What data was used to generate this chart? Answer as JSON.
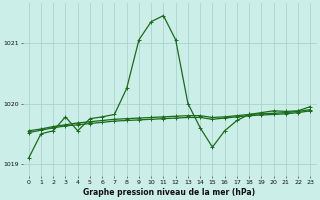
{
  "title": "Graphe pression niveau de la mer (hPa)",
  "background_color": "#cceee8",
  "grid_color": "#aad4cc",
  "line_color": "#1a6b1a",
  "xlim": [
    -0.5,
    23.5
  ],
  "ylim": [
    1018.8,
    1021.65
  ],
  "yticks": [
    1019,
    1020,
    1021
  ],
  "xticks": [
    0,
    1,
    2,
    3,
    4,
    5,
    6,
    7,
    8,
    9,
    10,
    11,
    12,
    13,
    14,
    15,
    16,
    17,
    18,
    19,
    20,
    21,
    22,
    23
  ],
  "series_main": {
    "x": [
      0,
      1,
      2,
      3,
      4,
      5,
      6,
      7,
      8,
      9,
      10,
      11,
      12,
      13,
      14,
      15,
      16,
      17,
      18,
      19,
      20,
      21,
      22,
      23
    ],
    "y": [
      1019.1,
      1019.5,
      1019.55,
      1019.78,
      1019.55,
      1019.75,
      1019.78,
      1019.82,
      1020.25,
      1021.05,
      1021.35,
      1021.45,
      1021.05,
      1020.0,
      1019.6,
      1019.28,
      1019.55,
      1019.72,
      1019.82,
      1019.85,
      1019.88,
      1019.87,
      1019.88,
      1019.95
    ]
  },
  "series_flat1": {
    "x": [
      0,
      1,
      2,
      3,
      4,
      5,
      6,
      7,
      8,
      9,
      10,
      11,
      12,
      13,
      14,
      15,
      16,
      17,
      18,
      19,
      20,
      21,
      22,
      23
    ],
    "y": [
      1019.55,
      1019.58,
      1019.62,
      1019.65,
      1019.68,
      1019.7,
      1019.72,
      1019.74,
      1019.75,
      1019.76,
      1019.77,
      1019.78,
      1019.79,
      1019.8,
      1019.8,
      1019.77,
      1019.78,
      1019.8,
      1019.82,
      1019.83,
      1019.84,
      1019.85,
      1019.87,
      1019.9
    ]
  },
  "series_flat2": {
    "x": [
      0,
      1,
      2,
      3,
      4,
      5,
      6,
      7,
      8,
      9,
      10,
      11,
      12,
      13,
      14,
      15,
      16,
      17,
      18,
      19,
      20,
      21,
      22,
      23
    ],
    "y": [
      1019.52,
      1019.56,
      1019.6,
      1019.63,
      1019.65,
      1019.67,
      1019.69,
      1019.71,
      1019.72,
      1019.73,
      1019.74,
      1019.75,
      1019.76,
      1019.77,
      1019.77,
      1019.74,
      1019.76,
      1019.78,
      1019.8,
      1019.81,
      1019.82,
      1019.83,
      1019.85,
      1019.88
    ]
  }
}
